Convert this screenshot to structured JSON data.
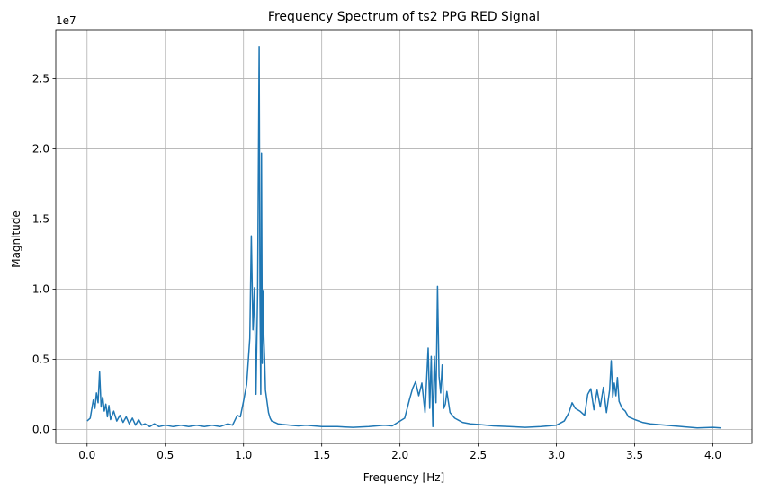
{
  "chart_data": {
    "type": "line",
    "title": "Frequency Spectrum of ts2 PPG RED Signal",
    "xlabel": "Frequency [Hz]",
    "ylabel": "Magnitude",
    "y_offset_label": "1e7",
    "xlim": [
      -0.2,
      4.25
    ],
    "ylim": [
      -1000000,
      28500000
    ],
    "x_ticks": [
      0.0,
      0.5,
      1.0,
      1.5,
      2.0,
      2.5,
      3.0,
      3.5,
      4.0
    ],
    "x_tick_labels": [
      "0.0",
      "0.5",
      "1.0",
      "1.5",
      "2.0",
      "2.5",
      "3.0",
      "3.5",
      "4.0"
    ],
    "y_ticks": [
      0,
      5000000,
      10000000,
      15000000,
      20000000,
      25000000
    ],
    "y_tick_labels": [
      "0.0",
      "0.5",
      "1.0",
      "1.5",
      "2.0",
      "2.5"
    ],
    "grid": true,
    "series_color": "#1f77b4",
    "series": [
      {
        "x": [
          0.0,
          0.02,
          0.04,
          0.05,
          0.06,
          0.07,
          0.08,
          0.09,
          0.1,
          0.11,
          0.12,
          0.13,
          0.14,
          0.15,
          0.17,
          0.19,
          0.21,
          0.23,
          0.25,
          0.27,
          0.29,
          0.31,
          0.33,
          0.35,
          0.37,
          0.4,
          0.43,
          0.46,
          0.5,
          0.55,
          0.6,
          0.65,
          0.7,
          0.75,
          0.8,
          0.85,
          0.9,
          0.93,
          0.96,
          0.98,
          1.0,
          1.02,
          1.04,
          1.05,
          1.06,
          1.07,
          1.08,
          1.09,
          1.1,
          1.105,
          1.11,
          1.115,
          1.12,
          1.125,
          1.13,
          1.135,
          1.14,
          1.15,
          1.16,
          1.17,
          1.18,
          1.2,
          1.22,
          1.25,
          1.3,
          1.35,
          1.4,
          1.5,
          1.6,
          1.7,
          1.8,
          1.9,
          1.95,
          2.0,
          2.03,
          2.06,
          2.08,
          2.1,
          2.12,
          2.14,
          2.16,
          2.18,
          2.19,
          2.2,
          2.21,
          2.22,
          2.23,
          2.24,
          2.25,
          2.26,
          2.27,
          2.28,
          2.29,
          2.3,
          2.32,
          2.35,
          2.4,
          2.45,
          2.5,
          2.6,
          2.7,
          2.8,
          2.9,
          3.0,
          3.05,
          3.08,
          3.1,
          3.12,
          3.15,
          3.18,
          3.2,
          3.22,
          3.24,
          3.26,
          3.28,
          3.3,
          3.32,
          3.34,
          3.35,
          3.36,
          3.37,
          3.38,
          3.39,
          3.4,
          3.42,
          3.44,
          3.46,
          3.48,
          3.5,
          3.55,
          3.6,
          3.7,
          3.8,
          3.9,
          4.0,
          4.05
        ],
        "y": [
          600000,
          800000,
          2100000,
          1500000,
          2600000,
          1900000,
          4100000,
          1600000,
          2300000,
          1300000,
          1800000,
          900000,
          1700000,
          700000,
          1300000,
          600000,
          1000000,
          500000,
          900000,
          400000,
          800000,
          300000,
          700000,
          300000,
          400000,
          200000,
          400000,
          200000,
          300000,
          200000,
          300000,
          200000,
          300000,
          200000,
          300000,
          200000,
          400000,
          300000,
          1000000,
          900000,
          2000000,
          3200000,
          6500000,
          13800000,
          7100000,
          10100000,
          2500000,
          9800000,
          27300000,
          9500000,
          2500000,
          19700000,
          4700000,
          9900000,
          6600000,
          5000000,
          2800000,
          2000000,
          1200000,
          800000,
          600000,
          500000,
          400000,
          350000,
          300000,
          250000,
          300000,
          200000,
          200000,
          150000,
          200000,
          300000,
          250000,
          600000,
          800000,
          2100000,
          2900000,
          3400000,
          2400000,
          3300000,
          1200000,
          5800000,
          1500000,
          5200000,
          200000,
          5200000,
          1900000,
          10200000,
          3800000,
          2600000,
          4600000,
          1500000,
          1800000,
          2700000,
          1200000,
          800000,
          500000,
          400000,
          350000,
          250000,
          200000,
          150000,
          200000,
          300000,
          600000,
          1200000,
          1900000,
          1500000,
          1300000,
          1000000,
          2500000,
          2900000,
          1400000,
          2800000,
          1600000,
          3000000,
          1200000,
          2800000,
          4900000,
          2300000,
          3300000,
          2400000,
          3700000,
          2000000,
          1500000,
          1300000,
          900000,
          800000,
          700000,
          500000,
          400000,
          300000,
          200000,
          100000,
          150000,
          100000
        ]
      }
    ]
  }
}
